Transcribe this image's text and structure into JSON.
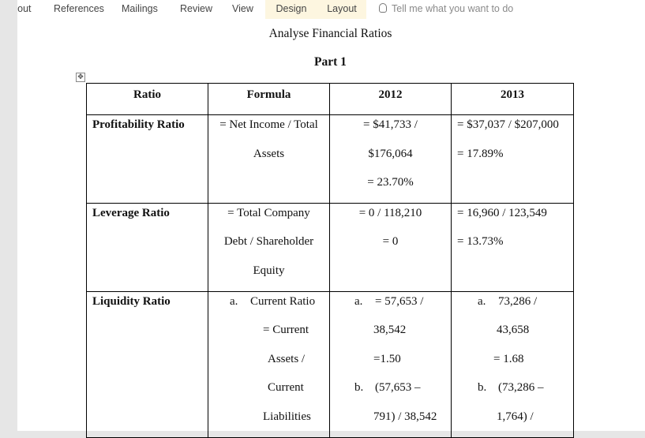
{
  "ribbon": {
    "tabs": [
      "Layout",
      "References",
      "Mailings",
      "Review",
      "View"
    ],
    "context_tabs": [
      "Design",
      "Layout"
    ],
    "tell_me": "Tell me what you want to do"
  },
  "document": {
    "title": "Analyse Financial Ratios",
    "part": "Part 1",
    "table": {
      "headers": [
        "Ratio",
        "Formula",
        "2012",
        "2013"
      ],
      "profitability": {
        "label": "Profitability Ratio",
        "formula": [
          "= Net Income / Total",
          "Assets"
        ],
        "y2012": [
          "= $41,733 /",
          "$176,064",
          "= 23.70%"
        ],
        "y2013": [
          "= $37,037 / $207,000",
          "= 17.89%"
        ]
      },
      "leverage": {
        "label": "Leverage Ratio",
        "formula": [
          "= Total Company",
          "Debt / Shareholder",
          "Equity"
        ],
        "y2012": [
          "= 0 / 118,210",
          "= 0"
        ],
        "y2013": [
          "= 16,960 / 123,549",
          "= 13.73%"
        ]
      },
      "liquidity": {
        "label": "Liquidity Ratio",
        "formula_marker": "a.",
        "formula": [
          "Current Ratio",
          "= Current",
          "Assets /",
          "Current",
          "Liabilities"
        ],
        "y2012_a_marker": "a.",
        "y2012_a": [
          "= 57,653 /",
          "38,542",
          "=1.50"
        ],
        "y2012_b_marker": "b.",
        "y2012_b": [
          "(57,653 –",
          "791) / 38,542"
        ],
        "y2013_a_marker": "a.",
        "y2013_a": [
          "73,286 /",
          "43,658",
          "= 1.68"
        ],
        "y2013_b_marker": "b.",
        "y2013_b": [
          "(73,286 –",
          "1,764) /"
        ]
      }
    }
  }
}
